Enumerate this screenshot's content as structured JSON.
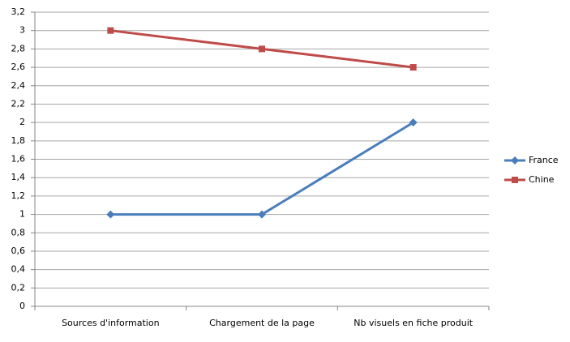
{
  "chart_data": {
    "type": "line",
    "categories": [
      "Sources d'information",
      "Chargement de la page",
      "Nb visuels en fiche produit"
    ],
    "series": [
      {
        "name": "France",
        "color": "#4a7ebb",
        "marker": "diamond",
        "values": [
          1,
          1,
          2
        ]
      },
      {
        "name": "Chine",
        "color": "#be4b48",
        "marker": "square",
        "values": [
          3,
          2.8,
          2.6
        ]
      }
    ],
    "ylim": [
      0,
      3.2
    ],
    "yticks": [
      0,
      {
        "value": 0.2,
        "label": "0,2"
      },
      {
        "value": 0.4,
        "label": "0,4"
      },
      {
        "value": 0.6,
        "label": "0,6"
      },
      {
        "value": 0.8,
        "label": "0,8"
      },
      1,
      {
        "value": 1.2,
        "label": "1,2"
      },
      {
        "value": 1.4,
        "label": "1,4"
      },
      {
        "value": 1.6,
        "label": "1,6"
      },
      {
        "value": 1.8,
        "label": "1,8"
      },
      2,
      {
        "value": 2.2,
        "label": "2,2"
      },
      {
        "value": 2.4,
        "label": "2,4"
      },
      {
        "value": 2.6,
        "label": "2,6"
      },
      {
        "value": 2.8,
        "label": "2,8"
      },
      3,
      {
        "value": 3.2,
        "label": "3,2"
      }
    ],
    "grid": true,
    "legend": "right"
  }
}
